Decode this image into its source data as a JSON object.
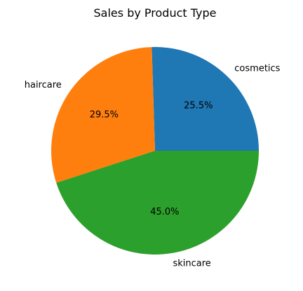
{
  "chart_data": {
    "type": "pie",
    "title": "Sales by Product Type",
    "slices": [
      {
        "label": "cosmetics",
        "value": 25.5,
        "percent_label": "25.5%",
        "color": "#1f77b4"
      },
      {
        "label": "haircare",
        "value": 29.5,
        "percent_label": "29.5%",
        "color": "#ff7f0e"
      },
      {
        "label": "skincare",
        "value": 45.0,
        "percent_label": "45.0%",
        "color": "#2ca02c"
      }
    ],
    "start_angle_deg": 0,
    "direction": "counterclockwise",
    "legend": "none"
  }
}
